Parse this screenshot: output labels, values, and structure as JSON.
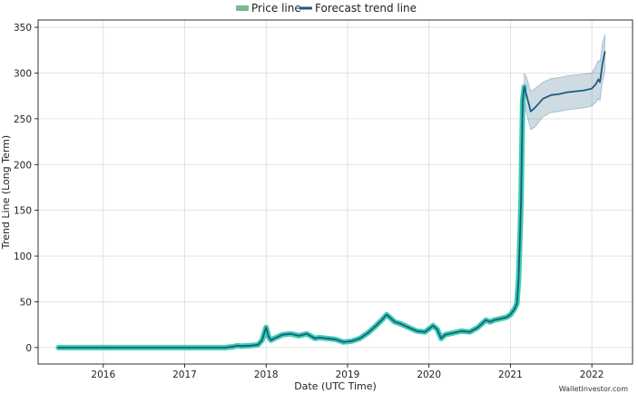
{
  "chart_data": {
    "type": "line",
    "xlabel": "Date (UTC Time)",
    "ylabel": "Trend Line (Long Term)",
    "xlim": [
      2015.2,
      2022.5
    ],
    "ylim": [
      -18,
      358
    ],
    "x_ticks": [
      2016,
      2017,
      2018,
      2019,
      2020,
      2021,
      2022
    ],
    "x_tick_labels": [
      "2016",
      "2017",
      "2018",
      "2019",
      "2020",
      "2021",
      "2022"
    ],
    "y_ticks": [
      0,
      50,
      100,
      150,
      200,
      250,
      300,
      350
    ],
    "y_tick_labels": [
      "0",
      "50",
      "100",
      "150",
      "200",
      "250",
      "300",
      "350"
    ],
    "grid": true,
    "legend_position": "top-center",
    "watermark": "WalletInvestor.com",
    "series": [
      {
        "name": "Price line",
        "color": "#3ccfb0",
        "legend_color": "#f08a5d",
        "x": [
          2015.45,
          2016.0,
          2016.5,
          2017.0,
          2017.5,
          2017.6,
          2017.65,
          2017.7,
          2017.8,
          2017.9,
          2017.95,
          2018.0,
          2018.03,
          2018.06,
          2018.1,
          2018.15,
          2018.2,
          2018.3,
          2018.4,
          2018.5,
          2018.6,
          2018.65,
          2018.75,
          2018.85,
          2018.95,
          2019.05,
          2019.15,
          2019.25,
          2019.35,
          2019.42,
          2019.48,
          2019.53,
          2019.58,
          2019.65,
          2019.75,
          2019.85,
          2019.95,
          2020.05,
          2020.1,
          2020.15,
          2020.2,
          2020.3,
          2020.4,
          2020.5,
          2020.6,
          2020.7,
          2020.75,
          2020.8,
          2020.9,
          2020.95,
          2021.0,
          2021.05,
          2021.08,
          2021.1,
          2021.12,
          2021.13,
          2021.15,
          2021.17
        ],
        "y": [
          0,
          0,
          0,
          0,
          0,
          1,
          2,
          1.5,
          2,
          3,
          8,
          22,
          12,
          8,
          10,
          12,
          14,
          15,
          13,
          15,
          10,
          11,
          10,
          9,
          6,
          7,
          10,
          16,
          24,
          30,
          36,
          32,
          28,
          26,
          22,
          18,
          17,
          24,
          20,
          10,
          14,
          16,
          18,
          17,
          22,
          30,
          28,
          30,
          32,
          33,
          36,
          42,
          48,
          75,
          128,
          160,
          270,
          285
        ]
      },
      {
        "name": "Forecast trend line",
        "color": "#1f5a80",
        "x": [
          2015.45,
          2016.0,
          2016.5,
          2017.0,
          2017.5,
          2017.6,
          2017.65,
          2017.7,
          2017.8,
          2017.9,
          2017.95,
          2018.0,
          2018.03,
          2018.06,
          2018.1,
          2018.15,
          2018.2,
          2018.3,
          2018.4,
          2018.5,
          2018.6,
          2018.65,
          2018.75,
          2018.85,
          2018.95,
          2019.05,
          2019.15,
          2019.25,
          2019.35,
          2019.42,
          2019.48,
          2019.53,
          2019.58,
          2019.65,
          2019.75,
          2019.85,
          2019.95,
          2020.05,
          2020.1,
          2020.15,
          2020.2,
          2020.3,
          2020.4,
          2020.5,
          2020.6,
          2020.7,
          2020.75,
          2020.8,
          2020.9,
          2020.95,
          2021.0,
          2021.05,
          2021.08,
          2021.1,
          2021.12,
          2021.13,
          2021.15,
          2021.17,
          2021.2,
          2021.25,
          2021.3,
          2021.4,
          2021.5,
          2021.6,
          2021.7,
          2021.8,
          2021.9,
          2022.0,
          2022.05,
          2022.08,
          2022.1,
          2022.13,
          2022.16
        ],
        "y": [
          0,
          0,
          0,
          0,
          0,
          1,
          2,
          1.5,
          2,
          3,
          8,
          22,
          12,
          8,
          10,
          12,
          14,
          15,
          13,
          15,
          10,
          11,
          10,
          9,
          6,
          7,
          10,
          16,
          24,
          30,
          36,
          32,
          28,
          26,
          22,
          18,
          17,
          24,
          20,
          10,
          14,
          16,
          18,
          17,
          22,
          30,
          28,
          30,
          32,
          33,
          36,
          42,
          48,
          75,
          128,
          160,
          270,
          285,
          275,
          258,
          262,
          272,
          276,
          277,
          279,
          280,
          281,
          283,
          288,
          293,
          290,
          310,
          323
        ]
      }
    ],
    "forecast_band": {
      "color": "#1f5a80",
      "x": [
        2021.17,
        2021.2,
        2021.25,
        2021.3,
        2021.4,
        2021.5,
        2021.6,
        2021.7,
        2021.8,
        2021.9,
        2022.0,
        2022.05,
        2022.08,
        2022.1,
        2022.13,
        2022.16
      ],
      "upper": [
        300,
        295,
        280,
        283,
        290,
        294,
        295,
        297,
        298,
        299,
        300,
        308,
        314,
        312,
        332,
        342
      ],
      "lower": [
        268,
        255,
        238,
        241,
        252,
        257,
        258,
        260,
        261,
        262,
        264,
        268,
        272,
        270,
        290,
        302
      ]
    }
  }
}
